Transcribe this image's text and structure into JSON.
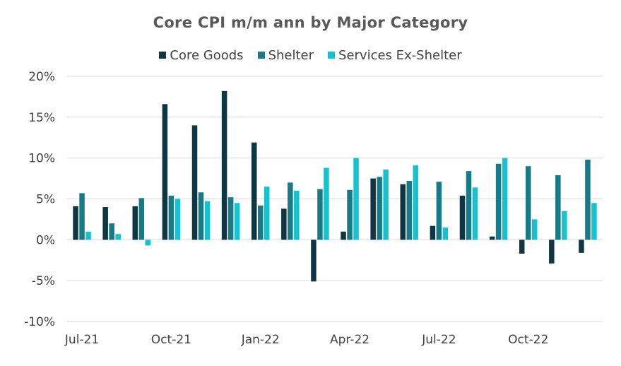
{
  "chart_data": {
    "type": "bar",
    "title": "Core CPI m/m ann by Major Category",
    "xlabel": "",
    "ylabel": "",
    "ylim": [
      -10,
      20
    ],
    "yticks": [
      -10,
      -5,
      0,
      5,
      10,
      15,
      20
    ],
    "ytick_labels": [
      "-10%",
      "-5%",
      "0%",
      "5%",
      "10%",
      "15%",
      "20%"
    ],
    "categories": [
      "Jul-21",
      "Aug-21",
      "Sep-21",
      "Oct-21",
      "Nov-21",
      "Dec-21",
      "Jan-22",
      "Feb-22",
      "Mar-22",
      "Apr-22",
      "May-22",
      "Jun-22",
      "Jul-22",
      "Aug-22",
      "Sep-22",
      "Oct-22",
      "Nov-22",
      "Dec-22"
    ],
    "xtick_labels": [
      {
        "index": 0,
        "label": "Jul-21"
      },
      {
        "index": 3,
        "label": "Oct-21"
      },
      {
        "index": 6,
        "label": "Jan-22"
      },
      {
        "index": 9,
        "label": "Apr-22"
      },
      {
        "index": 12,
        "label": "Jul-22"
      },
      {
        "index": 15,
        "label": "Oct-22"
      }
    ],
    "grid": true,
    "legend_position": "top",
    "series": [
      {
        "name": "Core Goods",
        "color": "#0e3743",
        "values": [
          4.1,
          4.0,
          4.1,
          16.6,
          14.0,
          18.2,
          11.9,
          3.8,
          -5.1,
          1.0,
          7.5,
          6.8,
          1.7,
          5.4,
          0.4,
          -1.7,
          -2.9,
          -1.6
        ]
      },
      {
        "name": "Shelter",
        "color": "#177a87",
        "values": [
          5.7,
          2.0,
          5.1,
          5.4,
          5.8,
          5.2,
          4.2,
          7.0,
          6.2,
          6.1,
          7.7,
          7.2,
          7.1,
          8.4,
          9.3,
          9.0,
          7.9,
          9.8
        ]
      },
      {
        "name": "Services Ex-Shelter",
        "color": "#14c3cf",
        "values": [
          1.0,
          0.7,
          -0.7,
          5.0,
          4.7,
          4.5,
          6.5,
          6.0,
          8.8,
          10.0,
          8.6,
          9.1,
          1.5,
          6.4,
          10.0,
          2.5,
          3.5,
          4.5
        ]
      }
    ]
  }
}
